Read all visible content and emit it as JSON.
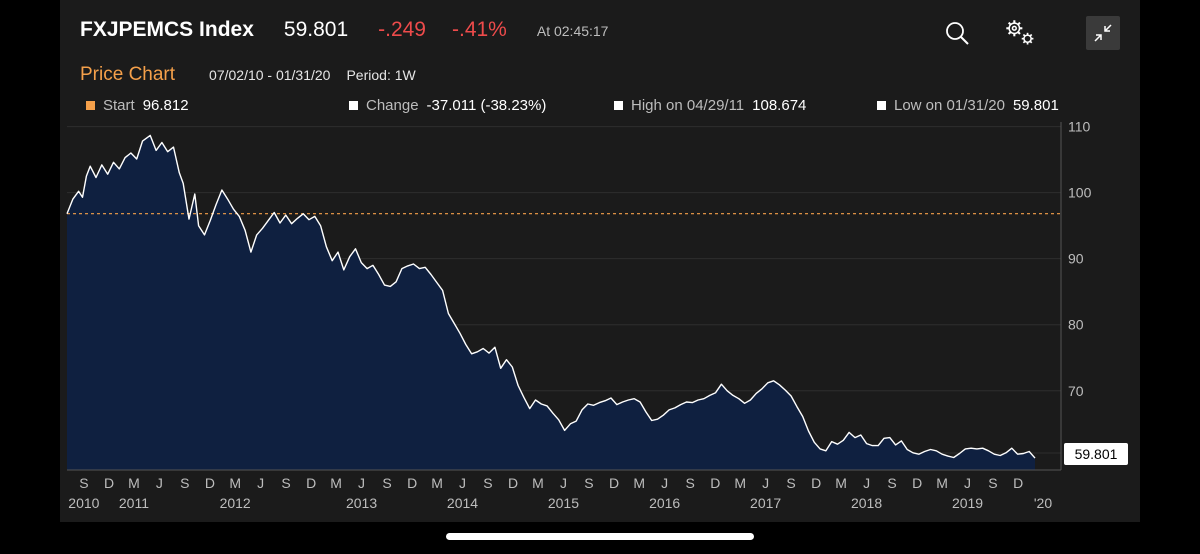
{
  "header": {
    "ticker": "FXJPEMCS Index",
    "price": "59.801",
    "change": "-.249",
    "change_pct": "-.41%",
    "as_of": "At 02:45:17"
  },
  "toolbar": {
    "search_icon": "search-icon",
    "settings_icon": "gear-icon",
    "collapse_icon": "collapse-icon"
  },
  "subheader": {
    "title": "Price Chart",
    "date_range": "07/02/10 - 01/31/20",
    "period": "Period: 1W"
  },
  "stats": {
    "start_label": "Start",
    "start_value": "96.812",
    "change_label": "Change",
    "change_value": "-37.011 (-38.23%)",
    "high_label": "High on 04/29/11",
    "high_value": "108.674",
    "low_label": "Low on 01/31/20",
    "low_value": "59.801"
  },
  "colors": {
    "accent": "#f5a04a",
    "negative": "#ee4b4b",
    "area_fill": "#0f2040",
    "line": "#ffffff"
  },
  "chart_data": {
    "type": "area",
    "x_unit": "date",
    "y_axis": {
      "ticks": [
        70,
        80,
        90,
        100,
        110
      ],
      "ylim": [
        58,
        111
      ],
      "position": "right"
    },
    "reference_line": {
      "value": 96.812,
      "style": "dashed",
      "color": "#f5a04a"
    },
    "last_value_label": "59.801",
    "x_ticks": [
      {
        "date": "2010-09-01",
        "label": "S",
        "year": "2010"
      },
      {
        "date": "2010-12-01",
        "label": "D"
      },
      {
        "date": "2011-03-01",
        "label": "M",
        "year": "2011"
      },
      {
        "date": "2011-06-01",
        "label": "J"
      },
      {
        "date": "2011-09-01",
        "label": "S"
      },
      {
        "date": "2011-12-01",
        "label": "D"
      },
      {
        "date": "2012-03-01",
        "label": "M",
        "year": "2012"
      },
      {
        "date": "2012-06-01",
        "label": "J"
      },
      {
        "date": "2012-09-01",
        "label": "S"
      },
      {
        "date": "2012-12-01",
        "label": "D"
      },
      {
        "date": "2013-03-01",
        "label": "M"
      },
      {
        "date": "2013-06-01",
        "label": "J",
        "year": "2013"
      },
      {
        "date": "2013-09-01",
        "label": "S"
      },
      {
        "date": "2013-12-01",
        "label": "D"
      },
      {
        "date": "2014-03-01",
        "label": "M"
      },
      {
        "date": "2014-06-01",
        "label": "J",
        "year": "2014"
      },
      {
        "date": "2014-09-01",
        "label": "S"
      },
      {
        "date": "2014-12-01",
        "label": "D"
      },
      {
        "date": "2015-03-01",
        "label": "M"
      },
      {
        "date": "2015-06-01",
        "label": "J",
        "year": "2015"
      },
      {
        "date": "2015-09-01",
        "label": "S"
      },
      {
        "date": "2015-12-01",
        "label": "D"
      },
      {
        "date": "2016-03-01",
        "label": "M"
      },
      {
        "date": "2016-06-01",
        "label": "J",
        "year": "2016"
      },
      {
        "date": "2016-09-01",
        "label": "S"
      },
      {
        "date": "2016-12-01",
        "label": "D"
      },
      {
        "date": "2017-03-01",
        "label": "M"
      },
      {
        "date": "2017-06-01",
        "label": "J",
        "year": "2017"
      },
      {
        "date": "2017-09-01",
        "label": "S"
      },
      {
        "date": "2017-12-01",
        "label": "D"
      },
      {
        "date": "2018-03-01",
        "label": "M"
      },
      {
        "date": "2018-06-01",
        "label": "J",
        "year": "2018"
      },
      {
        "date": "2018-09-01",
        "label": "S"
      },
      {
        "date": "2018-12-01",
        "label": "D"
      },
      {
        "date": "2019-03-01",
        "label": "M"
      },
      {
        "date": "2019-06-01",
        "label": "J",
        "year": "2019"
      },
      {
        "date": "2019-09-01",
        "label": "S"
      },
      {
        "date": "2019-12-01",
        "label": "D"
      }
    ],
    "x_end_label": {
      "date": "2020-01-31",
      "label": "'20"
    },
    "series": [
      {
        "points": [
          [
            "2010-07-02",
            96.8
          ],
          [
            "2010-07-23",
            99.0
          ],
          [
            "2010-08-13",
            100.2
          ],
          [
            "2010-08-27",
            99.3
          ],
          [
            "2010-09-10",
            102.5
          ],
          [
            "2010-09-24",
            104.0
          ],
          [
            "2010-10-15",
            102.3
          ],
          [
            "2010-11-05",
            104.2
          ],
          [
            "2010-11-26",
            102.8
          ],
          [
            "2010-12-17",
            104.6
          ],
          [
            "2011-01-07",
            103.6
          ],
          [
            "2011-01-28",
            105.3
          ],
          [
            "2011-02-18",
            106.0
          ],
          [
            "2011-03-11",
            105.1
          ],
          [
            "2011-04-01",
            107.8
          ],
          [
            "2011-04-29",
            108.674
          ],
          [
            "2011-05-20",
            106.4
          ],
          [
            "2011-06-10",
            107.6
          ],
          [
            "2011-07-01",
            106.2
          ],
          [
            "2011-07-22",
            106.9
          ],
          [
            "2011-08-12",
            103.0
          ],
          [
            "2011-08-26",
            101.4
          ],
          [
            "2011-09-16",
            96.0
          ],
          [
            "2011-10-07",
            99.8
          ],
          [
            "2011-10-21",
            95.0
          ],
          [
            "2011-11-11",
            93.6
          ],
          [
            "2011-12-02",
            95.8
          ],
          [
            "2011-12-23",
            98.2
          ],
          [
            "2012-01-13",
            100.4
          ],
          [
            "2012-02-03",
            99.0
          ],
          [
            "2012-02-24",
            97.5
          ],
          [
            "2012-03-16",
            96.4
          ],
          [
            "2012-04-06",
            94.3
          ],
          [
            "2012-04-27",
            91.0
          ],
          [
            "2012-05-18",
            93.6
          ],
          [
            "2012-06-08",
            94.6
          ],
          [
            "2012-06-29",
            95.8
          ],
          [
            "2012-07-20",
            97.0
          ],
          [
            "2012-08-10",
            95.4
          ],
          [
            "2012-08-31",
            96.6
          ],
          [
            "2012-09-21",
            95.3
          ],
          [
            "2012-10-12",
            96.1
          ],
          [
            "2012-11-02",
            96.8
          ],
          [
            "2012-11-23",
            95.9
          ],
          [
            "2012-12-14",
            96.4
          ],
          [
            "2013-01-04",
            95.0
          ],
          [
            "2013-01-25",
            91.8
          ],
          [
            "2013-02-15",
            89.7
          ],
          [
            "2013-03-08",
            91.0
          ],
          [
            "2013-03-29",
            88.3
          ],
          [
            "2013-04-19",
            90.3
          ],
          [
            "2013-05-10",
            91.5
          ],
          [
            "2013-05-31",
            89.4
          ],
          [
            "2013-06-21",
            88.5
          ],
          [
            "2013-07-12",
            89.0
          ],
          [
            "2013-08-02",
            87.6
          ],
          [
            "2013-08-23",
            86.0
          ],
          [
            "2013-09-13",
            85.8
          ],
          [
            "2013-10-04",
            86.5
          ],
          [
            "2013-10-25",
            88.5
          ],
          [
            "2013-11-15",
            88.9
          ],
          [
            "2013-12-06",
            89.2
          ],
          [
            "2013-12-27",
            88.5
          ],
          [
            "2014-01-17",
            88.7
          ],
          [
            "2014-02-07",
            87.6
          ],
          [
            "2014-02-28",
            86.4
          ],
          [
            "2014-03-21",
            85.2
          ],
          [
            "2014-04-11",
            81.7
          ],
          [
            "2014-05-02",
            80.2
          ],
          [
            "2014-05-23",
            78.7
          ],
          [
            "2014-06-13",
            77.0
          ],
          [
            "2014-07-04",
            75.6
          ],
          [
            "2014-07-25",
            75.9
          ],
          [
            "2014-08-15",
            76.4
          ],
          [
            "2014-09-05",
            75.7
          ],
          [
            "2014-09-26",
            76.6
          ],
          [
            "2014-10-17",
            73.4
          ],
          [
            "2014-11-07",
            74.7
          ],
          [
            "2014-11-28",
            73.6
          ],
          [
            "2014-12-19",
            70.8
          ],
          [
            "2015-01-09",
            69.0
          ],
          [
            "2015-01-30",
            67.3
          ],
          [
            "2015-02-20",
            68.6
          ],
          [
            "2015-03-13",
            68.0
          ],
          [
            "2015-04-03",
            67.7
          ],
          [
            "2015-04-24",
            66.6
          ],
          [
            "2015-05-15",
            65.6
          ],
          [
            "2015-06-05",
            64.0
          ],
          [
            "2015-06-26",
            65.0
          ],
          [
            "2015-07-17",
            65.4
          ],
          [
            "2015-08-07",
            67.1
          ],
          [
            "2015-08-28",
            68.0
          ],
          [
            "2015-09-18",
            67.8
          ],
          [
            "2015-10-09",
            68.2
          ],
          [
            "2015-10-30",
            68.5
          ],
          [
            "2015-11-20",
            68.9
          ],
          [
            "2015-12-11",
            67.9
          ],
          [
            "2016-01-01",
            68.3
          ],
          [
            "2016-01-22",
            68.6
          ],
          [
            "2016-02-12",
            68.8
          ],
          [
            "2016-03-04",
            68.3
          ],
          [
            "2016-03-25",
            66.8
          ],
          [
            "2016-04-15",
            65.5
          ],
          [
            "2016-05-06",
            65.7
          ],
          [
            "2016-05-27",
            66.3
          ],
          [
            "2016-06-17",
            67.1
          ],
          [
            "2016-07-08",
            67.4
          ],
          [
            "2016-07-29",
            67.9
          ],
          [
            "2016-08-19",
            68.3
          ],
          [
            "2016-09-09",
            68.2
          ],
          [
            "2016-09-30",
            68.6
          ],
          [
            "2016-10-21",
            68.8
          ],
          [
            "2016-11-11",
            69.3
          ],
          [
            "2016-12-02",
            69.7
          ],
          [
            "2016-12-23",
            71.0
          ],
          [
            "2017-01-13",
            70.0
          ],
          [
            "2017-02-03",
            69.3
          ],
          [
            "2017-02-24",
            68.8
          ],
          [
            "2017-03-17",
            68.1
          ],
          [
            "2017-04-07",
            68.6
          ],
          [
            "2017-04-28",
            69.6
          ],
          [
            "2017-05-19",
            70.3
          ],
          [
            "2017-06-09",
            71.2
          ],
          [
            "2017-06-30",
            71.5
          ],
          [
            "2017-07-21",
            70.9
          ],
          [
            "2017-08-11",
            70.1
          ],
          [
            "2017-09-01",
            69.2
          ],
          [
            "2017-09-22",
            67.6
          ],
          [
            "2017-10-13",
            66.1
          ],
          [
            "2017-11-03",
            63.9
          ],
          [
            "2017-11-24",
            62.2
          ],
          [
            "2017-12-15",
            61.2
          ],
          [
            "2018-01-05",
            60.9
          ],
          [
            "2018-01-26",
            62.3
          ],
          [
            "2018-02-16",
            61.9
          ],
          [
            "2018-03-09",
            62.5
          ],
          [
            "2018-03-30",
            63.7
          ],
          [
            "2018-04-20",
            62.9
          ],
          [
            "2018-05-11",
            63.3
          ],
          [
            "2018-06-01",
            62.0
          ],
          [
            "2018-06-22",
            61.7
          ],
          [
            "2018-07-13",
            61.7
          ],
          [
            "2018-08-03",
            62.8
          ],
          [
            "2018-08-24",
            62.9
          ],
          [
            "2018-09-14",
            61.8
          ],
          [
            "2018-10-05",
            62.4
          ],
          [
            "2018-10-26",
            61.1
          ],
          [
            "2018-11-16",
            60.6
          ],
          [
            "2018-12-07",
            60.4
          ],
          [
            "2018-12-28",
            60.8
          ],
          [
            "2019-01-18",
            61.1
          ],
          [
            "2019-02-08",
            60.9
          ],
          [
            "2019-03-01",
            60.4
          ],
          [
            "2019-03-22",
            60.1
          ],
          [
            "2019-04-12",
            59.9
          ],
          [
            "2019-05-03",
            60.5
          ],
          [
            "2019-05-24",
            61.2
          ],
          [
            "2019-06-14",
            61.3
          ],
          [
            "2019-07-05",
            61.2
          ],
          [
            "2019-07-26",
            61.3
          ],
          [
            "2019-08-16",
            60.9
          ],
          [
            "2019-09-06",
            60.4
          ],
          [
            "2019-09-27",
            60.2
          ],
          [
            "2019-10-18",
            60.6
          ],
          [
            "2019-11-08",
            61.3
          ],
          [
            "2019-11-29",
            60.4
          ],
          [
            "2019-12-20",
            60.5
          ],
          [
            "2020-01-10",
            60.8
          ],
          [
            "2020-01-31",
            59.801
          ]
        ]
      }
    ]
  }
}
